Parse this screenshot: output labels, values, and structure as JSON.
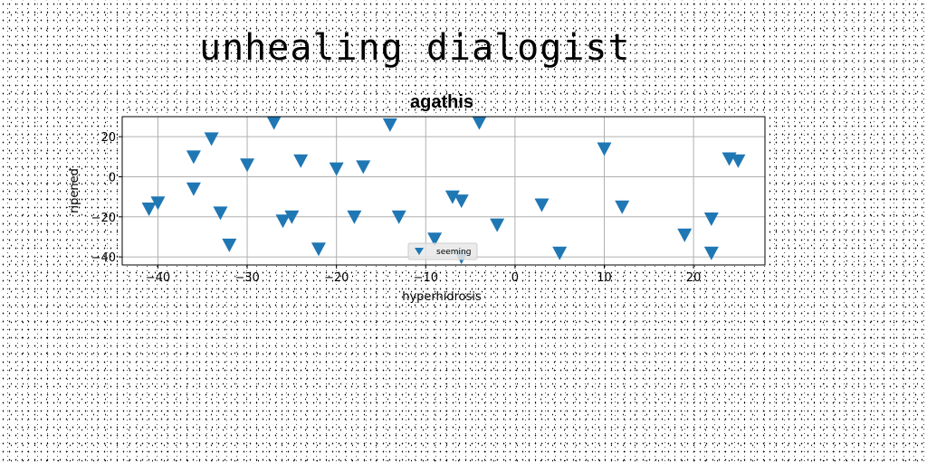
{
  "figure": {
    "suptitle": "unhealing dialogist"
  },
  "chart_data": {
    "type": "scatter",
    "title": "agathis",
    "xlabel": "hyperhidrosis",
    "ylabel": "ripened",
    "xlim": [
      -44,
      28
    ],
    "ylim": [
      -44,
      30
    ],
    "xticks": [
      -40,
      -30,
      -20,
      -10,
      0,
      10,
      20
    ],
    "yticks": [
      -40,
      -20,
      0,
      20
    ],
    "grid": true,
    "legend_position": "bottom-center",
    "marker": "triangle-down",
    "color": "#1f77b4",
    "series": [
      {
        "name": "seeming",
        "points": [
          [
            -41,
            -16
          ],
          [
            -40,
            -13
          ],
          [
            -36,
            10
          ],
          [
            -36,
            -6
          ],
          [
            -34,
            19
          ],
          [
            -33,
            -18
          ],
          [
            -32,
            -34
          ],
          [
            -30,
            6
          ],
          [
            -27,
            27
          ],
          [
            -26,
            -22
          ],
          [
            -25,
            -20
          ],
          [
            -24,
            8
          ],
          [
            -22,
            -36
          ],
          [
            -20,
            4
          ],
          [
            -18,
            -20
          ],
          [
            -17,
            5
          ],
          [
            -14,
            26
          ],
          [
            -13,
            -20
          ],
          [
            -9,
            -31
          ],
          [
            -7,
            -10
          ],
          [
            -6,
            -12
          ],
          [
            -6,
            -40
          ],
          [
            -4,
            27
          ],
          [
            -2,
            -24
          ],
          [
            3,
            -14
          ],
          [
            5,
            -38
          ],
          [
            10,
            14
          ],
          [
            12,
            -15
          ],
          [
            19,
            -29
          ],
          [
            22,
            -21
          ],
          [
            22,
            -38
          ],
          [
            24,
            9
          ],
          [
            25,
            8
          ]
        ]
      }
    ]
  }
}
